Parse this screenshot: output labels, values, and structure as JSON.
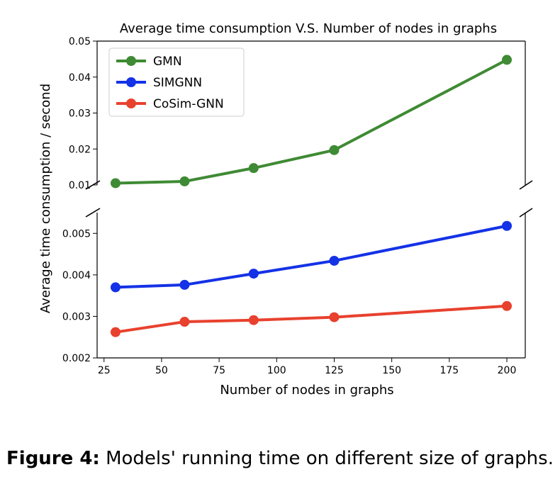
{
  "chart_data": {
    "type": "line",
    "title": "Average time consumption V.S. Number of nodes in graphs",
    "xlabel": "Number of nodes in graphs",
    "ylabel": "Average time consumption / second",
    "x": [
      30,
      60,
      90,
      125,
      200
    ],
    "xlim": [
      22,
      208
    ],
    "xticks": [
      25,
      50,
      75,
      100,
      125,
      150,
      175,
      200
    ],
    "broken_y_axis": true,
    "upper_panel": {
      "ylim": [
        0.01,
        0.05
      ],
      "yticks": [
        "0.01",
        "0.02",
        "0.03",
        "0.04",
        "0.05"
      ]
    },
    "lower_panel": {
      "ylim": [
        0.002,
        0.0055
      ],
      "yticks": [
        "0.002",
        "0.003",
        "0.004",
        "0.005"
      ]
    },
    "series": [
      {
        "name": "GMN",
        "color": "#3f8a34",
        "panel": "upper",
        "values": [
          0.0105,
          0.011,
          0.0147,
          0.0197,
          0.0448
        ]
      },
      {
        "name": "SIMGNN",
        "color": "#1432e6",
        "panel": "lower",
        "values": [
          0.0037,
          0.00376,
          0.00403,
          0.00434,
          0.00518
        ]
      },
      {
        "name": "CoSim-GNN",
        "color": "#e8412e",
        "panel": "lower",
        "values": [
          0.00262,
          0.00287,
          0.00291,
          0.00298,
          0.00325
        ]
      }
    ],
    "legend": "top-left",
    "grid": false
  },
  "caption": {
    "label": "Figure 4:",
    "text": "Models' running time on different size of graphs."
  }
}
